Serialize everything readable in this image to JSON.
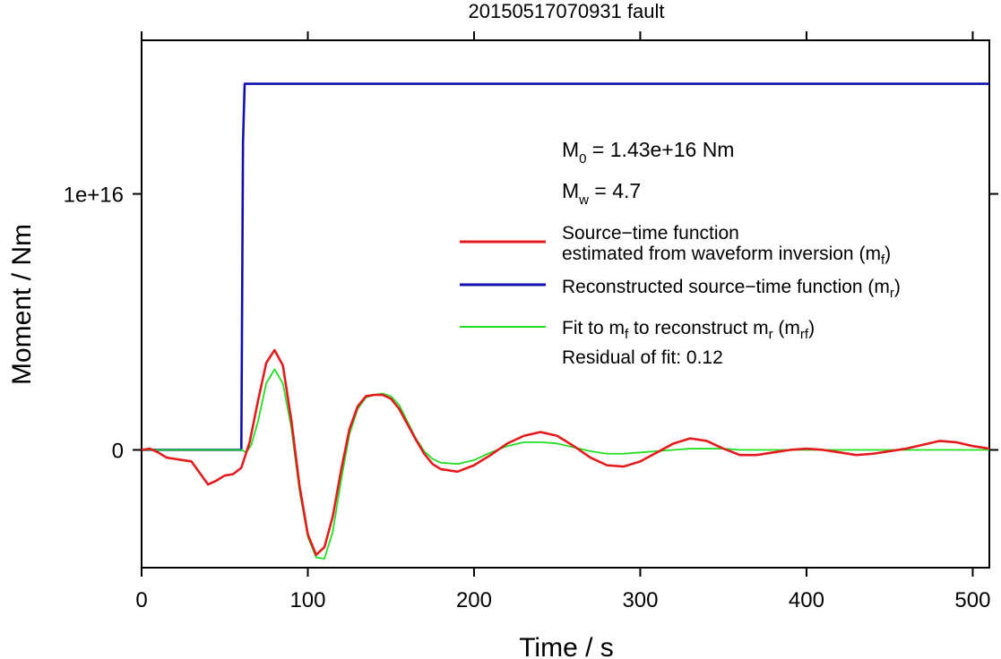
{
  "chart_data": {
    "type": "line",
    "title": "20150517070931 fault",
    "xlabel": "Time / s",
    "ylabel": "Moment / Nm",
    "xlim": [
      0,
      510
    ],
    "ylim": [
      -4600000000000000.0,
      1.6e+16
    ],
    "xticks": [
      0,
      100,
      200,
      300,
      400,
      500
    ],
    "xtick_labels": [
      "0",
      "100",
      "200",
      "300",
      "400",
      "500"
    ],
    "yticks": [
      0,
      1e+16
    ],
    "ytick_labels": [
      "0",
      "1e+16"
    ],
    "annotations": {
      "m0": {
        "base": "M",
        "sub": "0",
        "rest": " = 1.43e+16 Nm"
      },
      "mw": {
        "base": "M",
        "sub": "w",
        "rest": " = 4.7"
      },
      "residual": "Residual of fit: 0.12"
    },
    "legend": {
      "position": "right",
      "items": [
        {
          "color": "#e41a1c",
          "line1": "Source−time function",
          "line2a": "estimated from waveform inversion (m",
          "line2sub": "f",
          "line2b": ")"
        },
        {
          "color": "#1010b0",
          "line1a": "Reconstructed source−time function (m",
          "line1sub": "r",
          "line1b": ")"
        },
        {
          "color": "#22dd22",
          "t1": "Fit to m",
          "s1": "f",
          "t2": " to reconstruct m",
          "s2": "r",
          "t3": " (m",
          "s3": "rf",
          "t4": ")"
        }
      ]
    },
    "series": [
      {
        "name": "Source−time function estimated from waveform inversion (mf)",
        "color": "#e41a1c",
        "x": [
          0,
          5,
          10,
          15,
          20,
          25,
          30,
          35,
          40,
          45,
          50,
          55,
          60,
          65,
          70,
          75,
          80,
          85,
          90,
          95,
          100,
          105,
          110,
          115,
          120,
          125,
          130,
          135,
          140,
          145,
          150,
          155,
          160,
          165,
          170,
          175,
          180,
          190,
          200,
          210,
          220,
          230,
          240,
          250,
          260,
          270,
          280,
          290,
          300,
          310,
          320,
          330,
          340,
          350,
          360,
          370,
          380,
          390,
          400,
          410,
          420,
          430,
          440,
          450,
          460,
          470,
          480,
          490,
          500,
          510
        ],
        "y": [
          0.0,
          50000000000000.0,
          -100000000000000.0,
          -300000000000000.0,
          -350000000000000.0,
          -400000000000000.0,
          -450000000000000.0,
          -900000000000000.0,
          -1350000000000000.0,
          -1200000000000000.0,
          -1000000000000000.0,
          -950000000000000.0,
          -700000000000000.0,
          300000000000000.0,
          1900000000000000.0,
          3400000000000000.0,
          3900000000000000.0,
          3300000000000000.0,
          1200000000000000.0,
          -1400000000000000.0,
          -3300000000000000.0,
          -4100000000000000.0,
          -3800000000000000.0,
          -2600000000000000.0,
          -800000000000000.0,
          800000000000000.0,
          1700000000000000.0,
          2100000000000000.0,
          2150000000000000.0,
          2150000000000000.0,
          2000000000000000.0,
          1600000000000000.0,
          1000000000000000.0,
          400000000000000.0,
          -150000000000000.0,
          -550000000000000.0,
          -750000000000000.0,
          -850000000000000.0,
          -600000000000000.0,
          -200000000000000.0,
          250000000000000.0,
          550000000000000.0,
          700000000000000.0,
          550000000000000.0,
          150000000000000.0,
          -300000000000000.0,
          -600000000000000.0,
          -650000000000000.0,
          -450000000000000.0,
          -100000000000000.0,
          250000000000000.0,
          450000000000000.0,
          350000000000000.0,
          50000000000000.0,
          -200000000000000.0,
          -200000000000000.0,
          -100000000000000.0,
          0.0,
          50000000000000.0,
          0.0,
          -100000000000000.0,
          -200000000000000.0,
          -150000000000000.0,
          -50000000000000.0,
          50000000000000.0,
          200000000000000.0,
          350000000000000.0,
          300000000000000.0,
          150000000000000.0,
          50000000000000.0
        ]
      },
      {
        "name": "Reconstructed source−time function (mr)",
        "color": "#1010b0",
        "x": [
          0,
          60,
          60.5,
          61,
          62,
          510
        ],
        "y": [
          0,
          0,
          6000000000000000.0,
          1.2e+16,
          1.43e+16,
          1.43e+16
        ]
      },
      {
        "name": "Fit to mf to reconstruct mr (mrf)",
        "color": "#22dd22",
        "x": [
          0,
          60,
          63,
          66,
          70,
          75,
          80,
          85,
          90,
          95,
          100,
          105,
          110,
          115,
          120,
          125,
          130,
          135,
          140,
          145,
          150,
          155,
          160,
          165,
          170,
          175,
          180,
          190,
          200,
          210,
          220,
          230,
          240,
          250,
          260,
          270,
          280,
          290,
          300,
          310,
          320,
          330,
          340,
          350,
          360,
          380,
          400,
          430,
          460,
          490,
          510
        ],
        "y": [
          0,
          0,
          -100000000000000.0,
          200000000000000.0,
          1100000000000000.0,
          2600000000000000.0,
          3150000000000000.0,
          2600000000000000.0,
          900000000000000.0,
          -1600000000000000.0,
          -3400000000000000.0,
          -4200000000000000.0,
          -4250000000000000.0,
          -3200000000000000.0,
          -1200000000000000.0,
          600000000000000.0,
          1600000000000000.0,
          2050000000000000.0,
          2150000000000000.0,
          2200000000000000.0,
          2100000000000000.0,
          1750000000000000.0,
          1100000000000000.0,
          450000000000000.0,
          -50000000000000.0,
          -350000000000000.0,
          -500000000000000.0,
          -550000000000000.0,
          -400000000000000.0,
          -100000000000000.0,
          150000000000000.0,
          300000000000000.0,
          300000000000000.0,
          250000000000000.0,
          100000000000000.0,
          -50000000000000.0,
          -150000000000000.0,
          -150000000000000.0,
          -100000000000000.0,
          -50000000000000.0,
          0.0,
          50000000000000.0,
          50000000000000.0,
          50000000000000.0,
          0.0,
          0.0,
          0.0,
          0.0,
          0.0,
          0.0,
          0.0
        ]
      }
    ]
  }
}
